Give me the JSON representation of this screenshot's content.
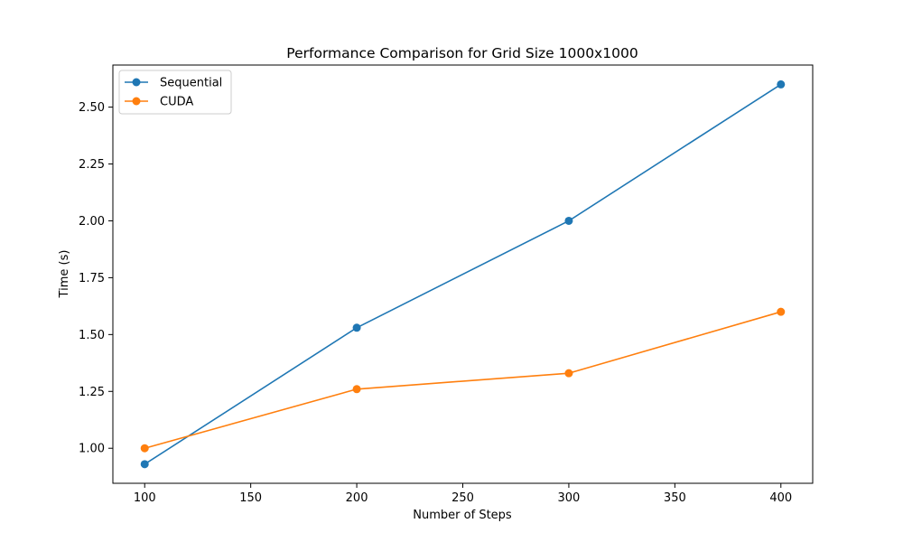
{
  "chart_data": {
    "type": "line",
    "title": "Performance Comparison for Grid Size 1000x1000",
    "xlabel": "Number of Steps",
    "ylabel": "Time (s)",
    "x": [
      100,
      200,
      300,
      400
    ],
    "xlim": [
      85,
      415
    ],
    "ylim": [
      0.846,
      2.685
    ],
    "xticks": [
      100,
      150,
      200,
      250,
      300,
      350,
      400
    ],
    "xtick_labels": [
      "100",
      "150",
      "200",
      "250",
      "300",
      "350",
      "400"
    ],
    "yticks": [
      1.0,
      1.25,
      1.5,
      1.75,
      2.0,
      2.25,
      2.5
    ],
    "ytick_labels": [
      "1.00",
      "1.25",
      "1.50",
      "1.75",
      "2.00",
      "2.25",
      "2.50"
    ],
    "grid": false,
    "legend_position": "upper left",
    "series": [
      {
        "name": "Sequential",
        "color": "#1f77b4",
        "marker": "circle",
        "values": [
          0.93,
          1.53,
          2.0,
          2.6
        ]
      },
      {
        "name": "CUDA",
        "color": "#ff7f0e",
        "marker": "circle",
        "values": [
          1.0,
          1.26,
          1.33,
          1.6
        ]
      }
    ]
  }
}
